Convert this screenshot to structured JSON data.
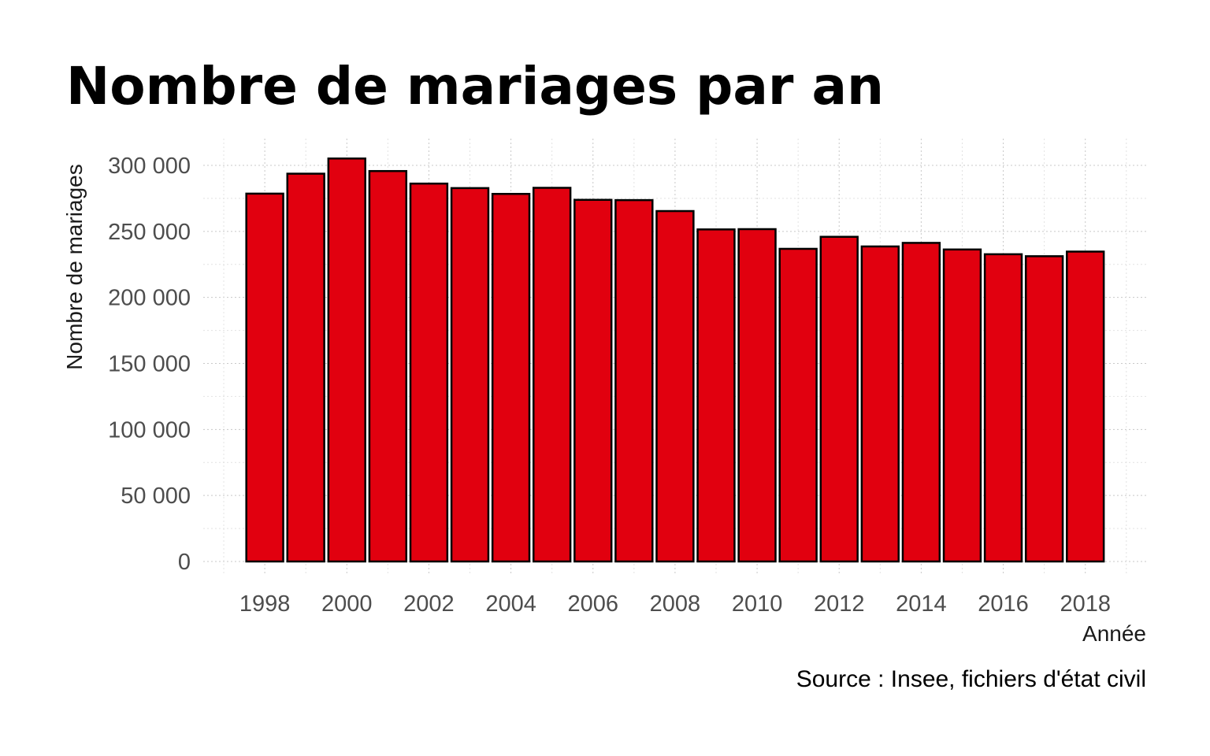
{
  "chart_data": {
    "type": "bar",
    "title": "Nombre de mariages par an",
    "xlabel": "Année",
    "ylabel": "Nombre de mariages",
    "caption": "Source : Insee, fichiers d'état civil",
    "categories": [
      1998,
      1999,
      2000,
      2001,
      2002,
      2003,
      2004,
      2005,
      2006,
      2007,
      2008,
      2009,
      2010,
      2011,
      2012,
      2013,
      2014,
      2015,
      2016,
      2017,
      2018
    ],
    "values": [
      278600,
      293700,
      305200,
      295700,
      286200,
      282800,
      278400,
      283000,
      273900,
      273700,
      265400,
      251500,
      251700,
      236800,
      245900,
      238600,
      241300,
      236300,
      232700,
      231200,
      234700
    ],
    "x_ticks": [
      1998,
      2000,
      2002,
      2004,
      2006,
      2008,
      2010,
      2012,
      2014,
      2016,
      2018
    ],
    "y_ticks": [
      0,
      50000,
      100000,
      150000,
      200000,
      250000,
      300000
    ],
    "y_tick_labels": [
      "0",
      "50 000",
      "100 000",
      "150 000",
      "200 000",
      "250 000",
      "300 000"
    ],
    "ylim": [
      0,
      320000
    ],
    "xlim": [
      1996.5,
      2019.5
    ],
    "grid": true,
    "legend": "none",
    "colors": {
      "bar_fill": "#e1000f",
      "bar_stroke": "#000000",
      "tick_text": "#4d4d4d"
    }
  }
}
